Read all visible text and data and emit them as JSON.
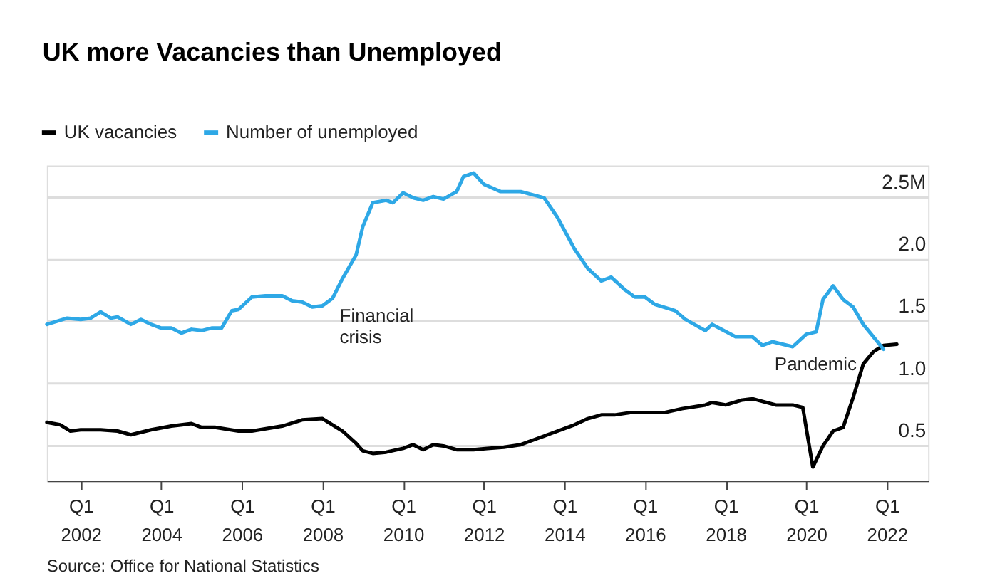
{
  "chart_data": {
    "type": "line",
    "title": "UK more Vacancies than Unemployed",
    "xlim": [
      "2001-03-01",
      "2023-01-10"
    ],
    "xticks": [
      {
        "value": "2002-01",
        "label": "Q1 2002"
      },
      {
        "value": "2004-01",
        "label": "Q1 2004"
      },
      {
        "value": "2006-01",
        "label": "Q1 2006"
      },
      {
        "value": "2008-01",
        "label": "Q1 2008"
      },
      {
        "value": "2010-01",
        "label": "Q1 2010"
      },
      {
        "value": "2012-01",
        "label": "Q1 2012"
      },
      {
        "value": "2014-01",
        "label": "Q1 2014"
      },
      {
        "value": "2016-01",
        "label": "Q1 2016"
      },
      {
        "value": "2018-01",
        "label": "Q1 2018"
      },
      {
        "value": "2020-01",
        "label": "Q1 2020"
      },
      {
        "value": "2022-01",
        "label": "Q1 2022"
      }
    ],
    "ylim": [
      0.21,
      2.75
    ],
    "yticks": [
      {
        "value": 0.5,
        "label": "0.5"
      },
      {
        "value": 1,
        "label": "1.0"
      },
      {
        "value": 1.5,
        "label": "1.5"
      },
      {
        "value": 2,
        "label": "2.0"
      },
      {
        "value": 2.5,
        "label": "2.5M"
      }
    ],
    "grid": "y",
    "legend": "top left",
    "line_style": "solid",
    "series": [
      {
        "name": "UK vacancies",
        "color": "#000000",
        "x": [
          "2001-03",
          "2001-07",
          "2001-10",
          "2002-01",
          "2002-07",
          "2002-12",
          "2003-04",
          "2003-07",
          "2003-10",
          "2004-04",
          "2004-10",
          "2005-01",
          "2005-05",
          "2005-12",
          "2006-04",
          "2007-01",
          "2007-07",
          "2008-01",
          "2008-04",
          "2008-07",
          "2008-11",
          "2009-01",
          "2009-04",
          "2009-08",
          "2010-01",
          "2010-04",
          "2010-07",
          "2010-10",
          "2011-01",
          "2011-05",
          "2011-10",
          "2012-02",
          "2012-07",
          "2012-12",
          "2013-05",
          "2013-09",
          "2014-04",
          "2014-08",
          "2014-12",
          "2015-04",
          "2015-09",
          "2016-07",
          "2016-12",
          "2017-07",
          "2017-09",
          "2018-01",
          "2018-06",
          "2018-09",
          "2019-04",
          "2019-09",
          "2019-12",
          "2020-03",
          "2020-06",
          "2020-09",
          "2020-12",
          "2021-03",
          "2021-06",
          "2021-09",
          "2021-12",
          "2022-04"
        ],
        "values": [
          0.68,
          0.66,
          0.61,
          0.62,
          0.62,
          0.61,
          0.58,
          0.6,
          0.62,
          0.65,
          0.67,
          0.64,
          0.64,
          0.61,
          0.61,
          0.65,
          0.7,
          0.71,
          0.66,
          0.61,
          0.51,
          0.45,
          0.43,
          0.44,
          0.47,
          0.5,
          0.46,
          0.5,
          0.49,
          0.46,
          0.46,
          0.47,
          0.48,
          0.5,
          0.55,
          0.59,
          0.66,
          0.71,
          0.74,
          0.74,
          0.76,
          0.76,
          0.79,
          0.82,
          0.84,
          0.82,
          0.86,
          0.87,
          0.82,
          0.82,
          0.8,
          0.32,
          0.49,
          0.61,
          0.64,
          0.88,
          1.15,
          1.25,
          1.3,
          1.31
        ]
      },
      {
        "name": "Number of unemployed",
        "color": "#2ea8e6",
        "x": [
          "2001-03",
          "2001-09",
          "2002-01",
          "2002-04",
          "2002-07",
          "2002-10",
          "2002-12",
          "2003-04",
          "2003-07",
          "2003-10",
          "2004-01",
          "2004-04",
          "2004-07",
          "2004-10",
          "2005-01",
          "2005-04",
          "2005-07",
          "2005-10",
          "2005-12",
          "2006-04",
          "2006-08",
          "2007-01",
          "2007-04",
          "2007-07",
          "2007-10",
          "2008-01",
          "2008-04",
          "2008-07",
          "2008-11",
          "2009-01",
          "2009-04",
          "2009-08",
          "2009-10",
          "2010-01",
          "2010-04",
          "2010-07",
          "2010-10",
          "2011-01",
          "2011-05",
          "2011-07",
          "2011-10",
          "2012-01",
          "2012-06",
          "2012-12",
          "2013-07",
          "2013-11",
          "2014-04",
          "2014-08",
          "2014-12",
          "2015-03",
          "2015-07",
          "2015-10",
          "2016-01",
          "2016-04",
          "2016-10",
          "2017-01",
          "2017-07",
          "2017-09",
          "2018-04",
          "2018-09",
          "2018-12",
          "2019-03",
          "2019-09",
          "2020-01",
          "2020-04",
          "2020-06",
          "2020-09",
          "2020-12",
          "2021-03",
          "2021-06",
          "2021-09",
          "2021-12"
        ],
        "values": [
          1.47,
          1.52,
          1.51,
          1.52,
          1.57,
          1.52,
          1.53,
          1.47,
          1.51,
          1.47,
          1.44,
          1.44,
          1.4,
          1.43,
          1.42,
          1.44,
          1.44,
          1.58,
          1.59,
          1.69,
          1.7,
          1.7,
          1.66,
          1.65,
          1.61,
          1.62,
          1.68,
          1.84,
          2.03,
          2.26,
          2.45,
          2.47,
          2.45,
          2.53,
          2.49,
          2.47,
          2.5,
          2.48,
          2.54,
          2.66,
          2.69,
          2.6,
          2.54,
          2.54,
          2.49,
          2.33,
          2.08,
          1.92,
          1.82,
          1.85,
          1.75,
          1.69,
          1.69,
          1.63,
          1.58,
          1.51,
          1.42,
          1.47,
          1.37,
          1.37,
          1.3,
          1.33,
          1.29,
          1.39,
          1.41,
          1.67,
          1.78,
          1.67,
          1.61,
          1.47,
          1.37,
          1.27
        ]
      }
    ],
    "annotations": [
      "Financial crisis",
      "Pandemic",
      "Source: Office for National Statistics"
    ]
  }
}
